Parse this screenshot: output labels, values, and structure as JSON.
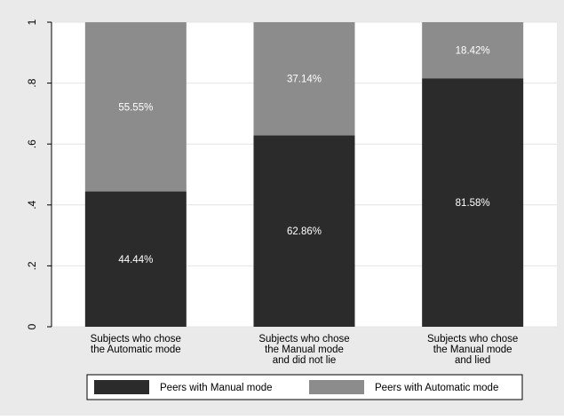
{
  "chart_data": {
    "type": "bar",
    "stacked": true,
    "title": "",
    "xlabel": "",
    "ylabel": "",
    "categories": [
      [
        "Subjects who chose",
        "the Automatic mode"
      ],
      [
        "Subjects who chose",
        "the Manual mode",
        "and did not lie"
      ],
      [
        "Subjects who chose",
        "the Manual mode",
        "and lied"
      ]
    ],
    "series": [
      {
        "name": "Peers with Manual mode",
        "color": "#2b2b2b",
        "values": [
          0.4444,
          0.6286,
          0.8158
        ],
        "labels": [
          "44.44%",
          "62.86%",
          "81.58%"
        ]
      },
      {
        "name": "Peers with Automatic mode",
        "color": "#8c8c8c",
        "values": [
          0.5555,
          0.3714,
          0.1842
        ],
        "labels": [
          "55.55%",
          "37.14%",
          "18.42%"
        ]
      }
    ],
    "ylim": [
      0,
      1
    ],
    "yticks": [
      0,
      0.2,
      0.4,
      0.6,
      0.8,
      1
    ],
    "ytick_labels": [
      "0",
      ".2",
      ".4",
      ".6",
      ".8",
      "1"
    ],
    "grid": true,
    "legend_position": "bottom",
    "colors": {
      "outer_background": "#eaeaea",
      "plot_background": "#ffffff",
      "gridline": "#e4e4e4",
      "label_text": "#ffffff"
    }
  }
}
